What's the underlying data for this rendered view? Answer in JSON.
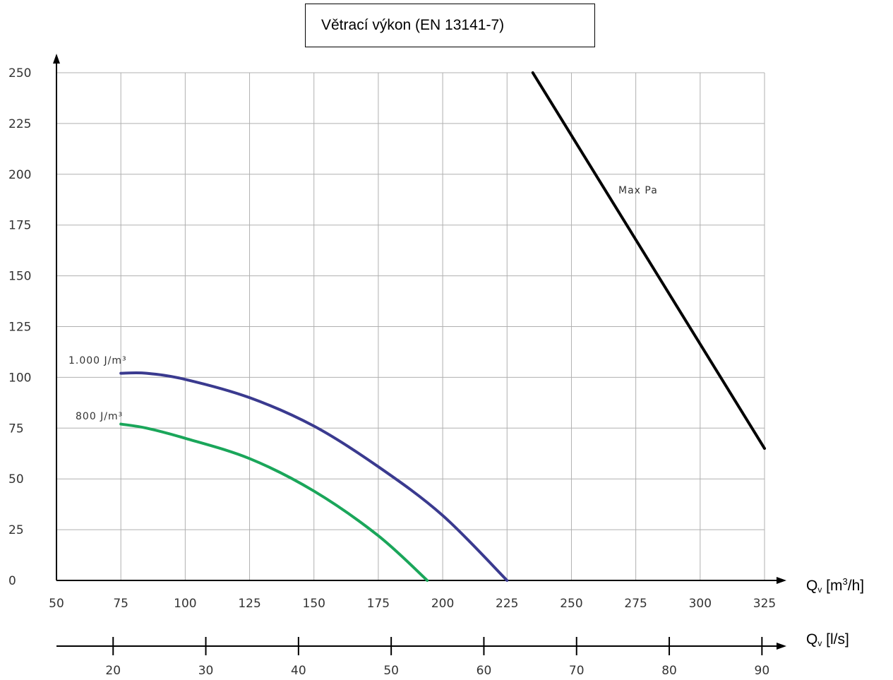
{
  "chart_data": {
    "type": "line",
    "title": "Větrací výkon (EN 13141-7)",
    "x_axis": {
      "label_main": "Q",
      "label_sub": "v",
      "label_rest_1": " [m",
      "label_sup": "3",
      "label_rest_2": "/h]",
      "range": [
        50,
        325
      ],
      "ticks": [
        50,
        75,
        100,
        125,
        150,
        175,
        200,
        225,
        250,
        275,
        300,
        325
      ],
      "unit": "m3/h"
    },
    "x2_axis": {
      "label_main": "Q",
      "label_sub": "v",
      "label_rest": " [l/s]",
      "ticks": [
        20,
        30,
        40,
        50,
        60,
        70,
        80,
        90
      ],
      "unit": "l/s",
      "conversion_m3h_per_ls": 3.6
    },
    "y_axis": {
      "range": [
        0,
        250
      ],
      "ticks": [
        0,
        25,
        50,
        75,
        100,
        125,
        150,
        175,
        200,
        225,
        250
      ]
    },
    "grid": true,
    "series": [
      {
        "name": "1.000 J/m³",
        "color": "#3a3a8f",
        "points": [
          [
            75,
            102
          ],
          [
            85,
            102
          ],
          [
            100,
            99
          ],
          [
            125,
            90
          ],
          [
            150,
            76
          ],
          [
            175,
            56
          ],
          [
            200,
            32
          ],
          [
            225,
            0
          ]
        ]
      },
      {
        "name": "800 J/m³",
        "color": "#1aa65a",
        "points": [
          [
            75,
            77
          ],
          [
            85,
            75
          ],
          [
            100,
            70
          ],
          [
            125,
            60
          ],
          [
            150,
            44
          ],
          [
            175,
            22
          ],
          [
            194,
            0
          ]
        ]
      },
      {
        "name": "Max Pa",
        "color": "#000000",
        "points": [
          [
            235,
            250
          ],
          [
            325,
            65
          ]
        ]
      }
    ],
    "legend": "inline"
  }
}
